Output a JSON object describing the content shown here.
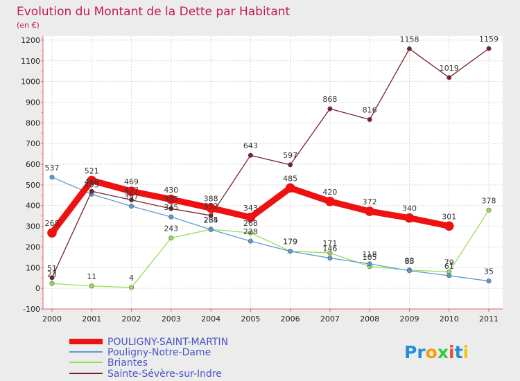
{
  "title": "Evolution du Montant de la Dette par Habitant",
  "subtitle": "(en €)",
  "logo": {
    "text": "Proxiti"
  },
  "colors": {
    "background": "#ececec",
    "plot_background": "#ffffff",
    "title": "#c2185b",
    "legend_text": "#4a55c8",
    "axis": "#e06666"
  },
  "chart_data": {
    "type": "line",
    "x": [
      "2000",
      "2001",
      "2002",
      "2003",
      "2004",
      "2005",
      "2006",
      "2007",
      "2008",
      "2009",
      "2010",
      "2011"
    ],
    "ylim": [
      -100,
      1200
    ],
    "yticks": [
      -100,
      0,
      100,
      200,
      300,
      400,
      500,
      600,
      700,
      800,
      900,
      1000,
      1100,
      1200
    ],
    "grid": true,
    "legend_position": "bottom-left",
    "series": [
      {
        "name": "POULIGNY-SAINT-MARTIN",
        "color": "#ee1111",
        "width": 9,
        "values": [
          268,
          521,
          469,
          430,
          388,
          343,
          485,
          420,
          372,
          340,
          301,
          null
        ],
        "labels": [
          "268",
          "521",
          "469",
          "430",
          "388",
          "343",
          "485",
          "420",
          "372",
          "340",
          "301",
          ""
        ]
      },
      {
        "name": "Pouligny-Notre-Dame",
        "color": "#5a9bd5",
        "width": 1.3,
        "values": [
          537,
          455,
          397,
          345,
          284,
          228,
          179,
          146,
          118,
          85,
          61,
          35
        ],
        "labels": [
          "537",
          "455",
          "397",
          "345",
          "284",
          "228",
          "179",
          "146",
          "118",
          "85",
          "61",
          "35"
        ]
      },
      {
        "name": "Briantes",
        "color": "#99dd55",
        "width": 1.3,
        "values": [
          23,
          11,
          4,
          243,
          285,
          268,
          179,
          171,
          105,
          88,
          79,
          378
        ],
        "labels": [
          "23",
          "11",
          "4",
          "243",
          "285",
          "268",
          "179",
          "171",
          "105",
          "88",
          "79",
          "378"
        ]
      },
      {
        "name": "Sainte-Sévère-sur-Indre",
        "color": "#7a1f2b",
        "width": 1.3,
        "values": [
          51,
          469,
          427,
          385,
          352,
          643,
          597,
          868,
          816,
          1158,
          1019,
          1159
        ],
        "labels": [
          "51",
          "469",
          "427",
          "385",
          "352",
          "643",
          "597",
          "868",
          "816",
          "1158",
          "1019",
          "1159"
        ]
      }
    ]
  }
}
